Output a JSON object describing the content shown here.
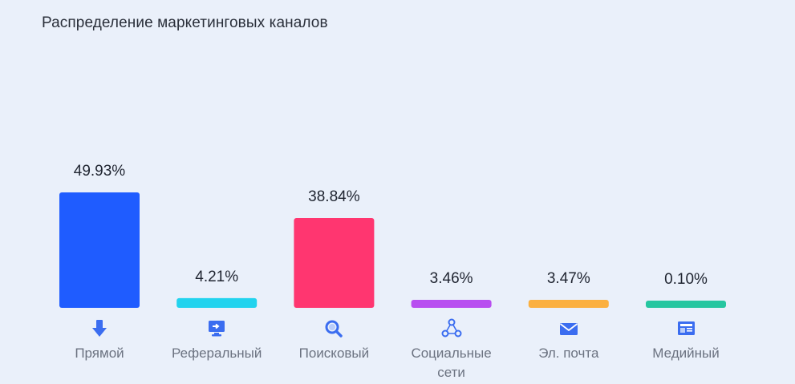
{
  "chart_data": {
    "type": "bar",
    "title": "Распределение маркетинговых каналов",
    "categories": [
      "Прямой",
      "Реферальный",
      "Поисковый",
      "Социальные сети",
      "Эл. почта",
      "Медийный"
    ],
    "values": [
      49.93,
      4.21,
      38.84,
      3.46,
      3.47,
      0.1
    ],
    "value_labels": [
      "49.93%",
      "4.21%",
      "38.84%",
      "3.46%",
      "3.47%",
      "0.10%"
    ],
    "colors": [
      "#1f5cff",
      "#22d3ee",
      "#ff3670",
      "#b84ef0",
      "#fbb040",
      "#26c6a0"
    ],
    "icons": [
      "arrow-down-icon",
      "monitor-icon",
      "magnifier-icon",
      "share-network-icon",
      "envelope-icon",
      "newspaper-icon"
    ],
    "ylim": [
      0,
      49.93
    ],
    "grid": false,
    "legend": "none"
  }
}
